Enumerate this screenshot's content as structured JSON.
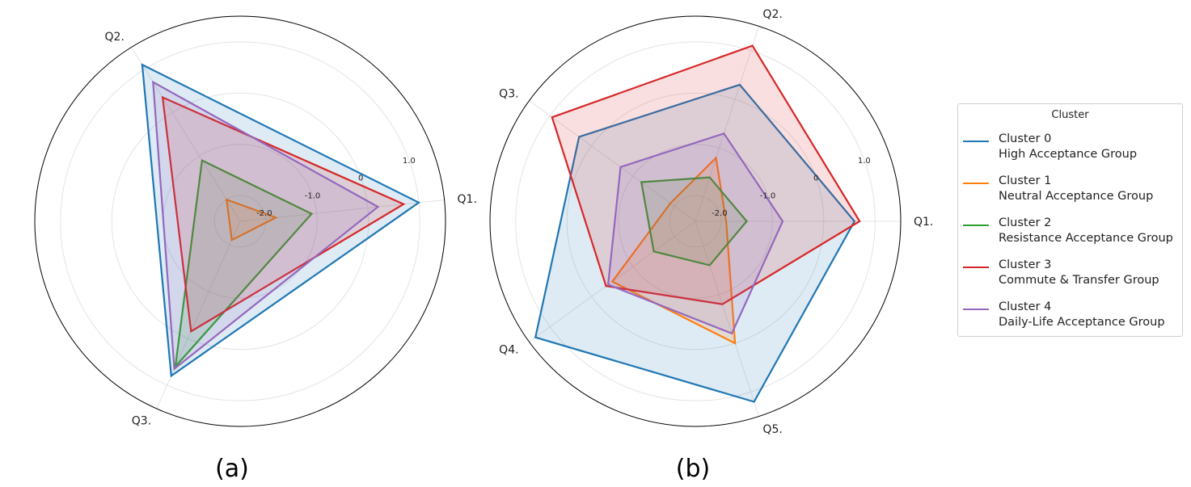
{
  "legend": {
    "title": "Cluster",
    "entries": [
      {
        "name": "Cluster 0",
        "desc": "High Acceptance Group",
        "color": "#1f77b4"
      },
      {
        "name": "Cluster 1",
        "desc": "Neutral Acceptance Group",
        "color": "#ff7f0e"
      },
      {
        "name": "Cluster 2",
        "desc": "Resistance Acceptance Group",
        "color": "#2ca02c"
      },
      {
        "name": "Cluster 3",
        "desc": "Commute & Transfer Group",
        "color": "#d62728"
      },
      {
        "name": "Cluster 4",
        "desc": "Daily-Life Acceptance Group",
        "color": "#9467bd"
      }
    ]
  },
  "chart_data": [
    {
      "type": "radar",
      "panel_label": "(a)",
      "axes": [
        "Q1.",
        "Q2.",
        "Q3."
      ],
      "rlim": [
        -2.5,
        1.5
      ],
      "rticks": [
        -2.0,
        -1.0,
        0,
        1.0
      ],
      "rtick_labels": [
        "-2.0",
        "-1.0",
        "0",
        "1.0"
      ],
      "grid": true,
      "series": [
        {
          "name": "Cluster 0",
          "values": [
            1.0,
            1.1,
            0.8
          ]
        },
        {
          "name": "Cluster 1",
          "values": [
            -1.8,
            -2.0,
            -2.1
          ]
        },
        {
          "name": "Cluster 2",
          "values": [
            -1.1,
            -1.1,
            0.6
          ]
        },
        {
          "name": "Cluster 3",
          "values": [
            0.7,
            0.35,
            -0.15
          ]
        },
        {
          "name": "Cluster 4",
          "values": [
            0.2,
            0.7,
            0.65
          ]
        }
      ]
    },
    {
      "type": "radar",
      "panel_label": "(b)",
      "axes": [
        "Q1.",
        "Q2.",
        "Q3.",
        "Q4.",
        "Q5."
      ],
      "rlim": [
        -2.5,
        1.5
      ],
      "rticks": [
        -2.0,
        -1.0,
        0,
        1.0
      ],
      "rtick_labels": [
        "-2.0",
        "-1.0",
        "0",
        "1.0"
      ],
      "grid": true,
      "series": [
        {
          "name": "Cluster 0",
          "values": [
            0.6,
            0.3,
            0.3,
            1.35,
            1.2
          ]
        },
        {
          "name": "Cluster 1",
          "values": [
            -1.9,
            -1.2,
            -1.9,
            -0.5,
            0.0
          ]
        },
        {
          "name": "Cluster 2",
          "values": [
            -1.5,
            -1.6,
            -1.2,
            -1.5,
            -1.6
          ]
        },
        {
          "name": "Cluster 3",
          "values": [
            0.7,
            1.1,
            0.95,
            -0.35,
            -0.8
          ]
        },
        {
          "name": "Cluster 4",
          "values": [
            -0.8,
            -0.7,
            -0.7,
            -0.4,
            -0.2
          ]
        }
      ]
    }
  ]
}
